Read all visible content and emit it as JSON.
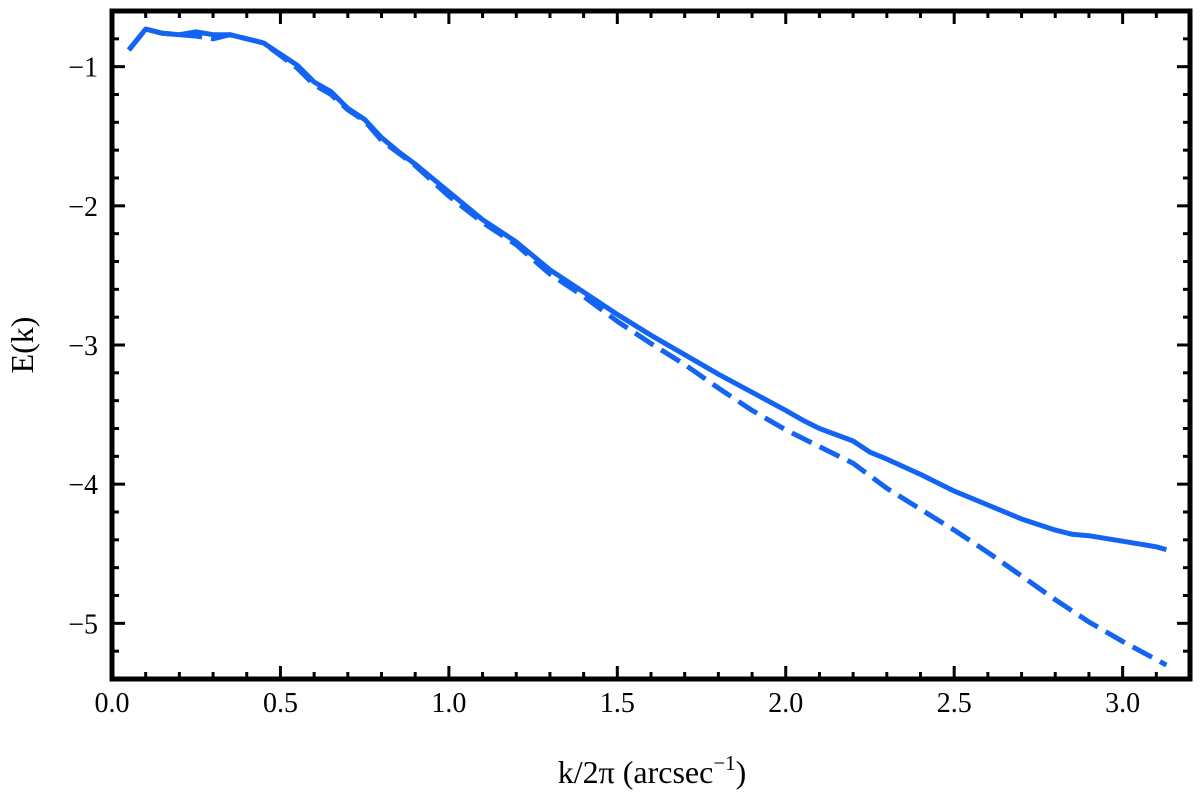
{
  "chart_data": {
    "type": "line",
    "title": "",
    "xlabel": "k/2π (arcsec",
    "xlabel_sup": "−1",
    "xlabel_tail": ")",
    "ylabel": "E(k)",
    "xlim": [
      0,
      3.2
    ],
    "ylim": [
      -5.4,
      -0.6
    ],
    "grid": false,
    "legend": "none",
    "x_ticks": [
      0.0,
      0.5,
      1.0,
      1.5,
      2.0,
      2.5,
      3.0
    ],
    "x_tick_labels": [
      "0.0",
      "0.5",
      "1.0",
      "1.5",
      "2.0",
      "2.5",
      "3.0"
    ],
    "y_ticks": [
      -1,
      -2,
      -3,
      -4,
      -5
    ],
    "y_tick_labels": [
      "−1",
      "−2",
      "−3",
      "−4",
      "−5"
    ],
    "line_color": "#1464F4",
    "series": [
      {
        "style": "solid",
        "x": [
          0.05,
          0.1,
          0.15,
          0.2,
          0.25,
          0.3,
          0.35,
          0.4,
          0.45,
          0.5,
          0.55,
          0.6,
          0.65,
          0.7,
          0.75,
          0.8,
          0.85,
          0.9,
          0.95,
          1.0,
          1.1,
          1.2,
          1.3,
          1.4,
          1.5,
          1.6,
          1.7,
          1.8,
          1.9,
          2.0,
          2.05,
          2.1,
          2.2,
          2.25,
          2.3,
          2.4,
          2.5,
          2.6,
          2.7,
          2.8,
          2.85,
          2.9,
          3.0,
          3.1,
          3.13
        ],
        "values": [
          -0.88,
          -0.73,
          -0.76,
          -0.77,
          -0.75,
          -0.77,
          -0.77,
          -0.8,
          -0.83,
          -0.91,
          -0.99,
          -1.11,
          -1.18,
          -1.3,
          -1.38,
          -1.51,
          -1.61,
          -1.7,
          -1.8,
          -1.9,
          -2.1,
          -2.26,
          -2.46,
          -2.62,
          -2.78,
          -2.93,
          -3.07,
          -3.21,
          -3.34,
          -3.47,
          -3.54,
          -3.6,
          -3.69,
          -3.77,
          -3.82,
          -3.93,
          -4.05,
          -4.15,
          -4.25,
          -4.33,
          -4.36,
          -4.37,
          -4.41,
          -4.45,
          -4.47
        ]
      },
      {
        "style": "dashed",
        "x": [
          0.05,
          0.1,
          0.15,
          0.2,
          0.25,
          0.3,
          0.35,
          0.4,
          0.45,
          0.5,
          0.55,
          0.6,
          0.65,
          0.7,
          0.75,
          0.8,
          0.85,
          0.9,
          0.95,
          1.0,
          1.1,
          1.2,
          1.3,
          1.4,
          1.5,
          1.6,
          1.7,
          1.8,
          1.9,
          2.0,
          2.1,
          2.2,
          2.25,
          2.3,
          2.4,
          2.5,
          2.6,
          2.7,
          2.8,
          2.9,
          3.0,
          3.13
        ],
        "values": [
          -0.88,
          -0.73,
          -0.76,
          -0.77,
          -0.78,
          -0.8,
          -0.77,
          -0.8,
          -0.83,
          -0.92,
          -1.01,
          -1.13,
          -1.2,
          -1.31,
          -1.39,
          -1.53,
          -1.62,
          -1.71,
          -1.82,
          -1.93,
          -2.12,
          -2.28,
          -2.49,
          -2.65,
          -2.83,
          -2.99,
          -3.14,
          -3.31,
          -3.47,
          -3.61,
          -3.73,
          -3.85,
          -3.94,
          -4.03,
          -4.18,
          -4.33,
          -4.49,
          -4.66,
          -4.83,
          -4.99,
          -5.13,
          -5.3
        ]
      }
    ]
  }
}
